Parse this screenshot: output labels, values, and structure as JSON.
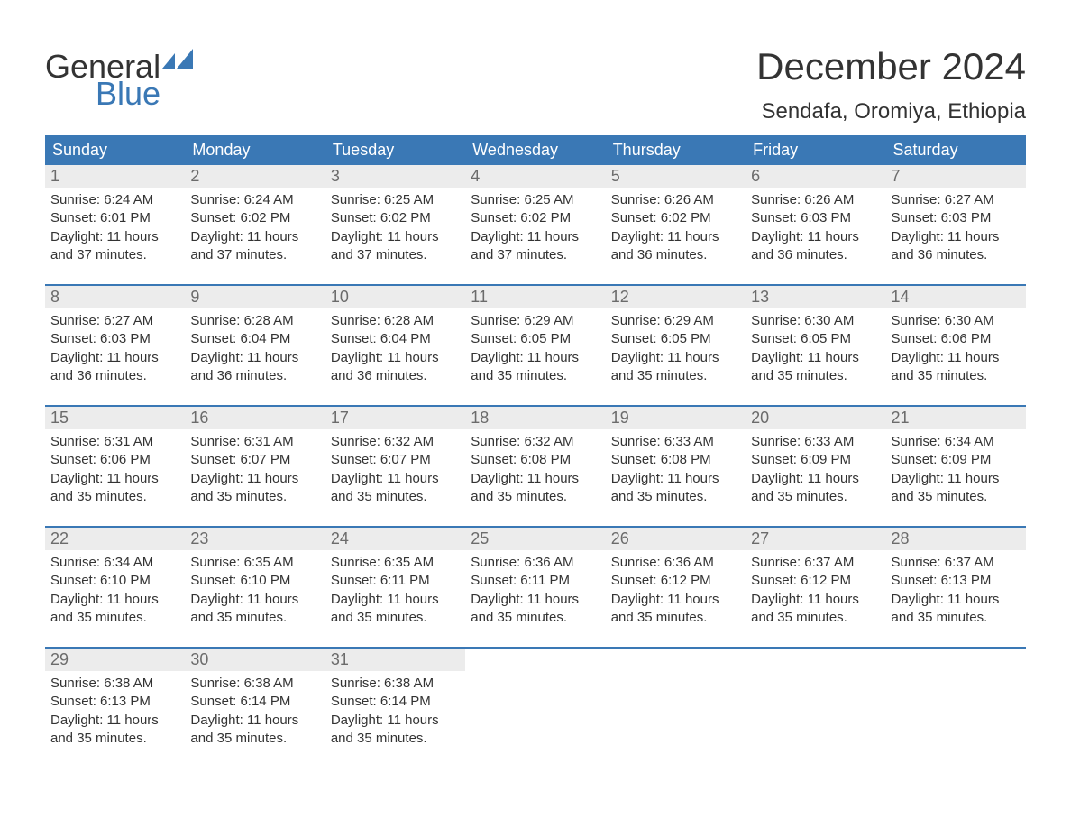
{
  "logo": {
    "word1": "General",
    "word2": "Blue",
    "flag_color": "#3a78b5"
  },
  "title": {
    "month": "December 2024",
    "location": "Sendafa, Oromiya, Ethiopia"
  },
  "colors": {
    "header_bg": "#3a78b5",
    "header_text": "#ffffff",
    "daynum_bg": "#ececec",
    "daynum_text": "#6b6b6b",
    "body_text": "#333333",
    "week_border": "#3a78b5",
    "background": "#ffffff"
  },
  "typography": {
    "month_title_fontsize": 42,
    "location_fontsize": 24,
    "dow_fontsize": 18,
    "daynum_fontsize": 18,
    "body_fontsize": 15
  },
  "labels": {
    "sunrise_prefix": "Sunrise: ",
    "sunset_prefix": "Sunset: ",
    "daylight_prefix": "Daylight: "
  },
  "dow": [
    "Sunday",
    "Monday",
    "Tuesday",
    "Wednesday",
    "Thursday",
    "Friday",
    "Saturday"
  ],
  "weeks": [
    [
      {
        "n": "1",
        "sunrise": "6:24 AM",
        "sunset": "6:01 PM",
        "daylight": "11 hours and 37 minutes."
      },
      {
        "n": "2",
        "sunrise": "6:24 AM",
        "sunset": "6:02 PM",
        "daylight": "11 hours and 37 minutes."
      },
      {
        "n": "3",
        "sunrise": "6:25 AM",
        "sunset": "6:02 PM",
        "daylight": "11 hours and 37 minutes."
      },
      {
        "n": "4",
        "sunrise": "6:25 AM",
        "sunset": "6:02 PM",
        "daylight": "11 hours and 37 minutes."
      },
      {
        "n": "5",
        "sunrise": "6:26 AM",
        "sunset": "6:02 PM",
        "daylight": "11 hours and 36 minutes."
      },
      {
        "n": "6",
        "sunrise": "6:26 AM",
        "sunset": "6:03 PM",
        "daylight": "11 hours and 36 minutes."
      },
      {
        "n": "7",
        "sunrise": "6:27 AM",
        "sunset": "6:03 PM",
        "daylight": "11 hours and 36 minutes."
      }
    ],
    [
      {
        "n": "8",
        "sunrise": "6:27 AM",
        "sunset": "6:03 PM",
        "daylight": "11 hours and 36 minutes."
      },
      {
        "n": "9",
        "sunrise": "6:28 AM",
        "sunset": "6:04 PM",
        "daylight": "11 hours and 36 minutes."
      },
      {
        "n": "10",
        "sunrise": "6:28 AM",
        "sunset": "6:04 PM",
        "daylight": "11 hours and 36 minutes."
      },
      {
        "n": "11",
        "sunrise": "6:29 AM",
        "sunset": "6:05 PM",
        "daylight": "11 hours and 35 minutes."
      },
      {
        "n": "12",
        "sunrise": "6:29 AM",
        "sunset": "6:05 PM",
        "daylight": "11 hours and 35 minutes."
      },
      {
        "n": "13",
        "sunrise": "6:30 AM",
        "sunset": "6:05 PM",
        "daylight": "11 hours and 35 minutes."
      },
      {
        "n": "14",
        "sunrise": "6:30 AM",
        "sunset": "6:06 PM",
        "daylight": "11 hours and 35 minutes."
      }
    ],
    [
      {
        "n": "15",
        "sunrise": "6:31 AM",
        "sunset": "6:06 PM",
        "daylight": "11 hours and 35 minutes."
      },
      {
        "n": "16",
        "sunrise": "6:31 AM",
        "sunset": "6:07 PM",
        "daylight": "11 hours and 35 minutes."
      },
      {
        "n": "17",
        "sunrise": "6:32 AM",
        "sunset": "6:07 PM",
        "daylight": "11 hours and 35 minutes."
      },
      {
        "n": "18",
        "sunrise": "6:32 AM",
        "sunset": "6:08 PM",
        "daylight": "11 hours and 35 minutes."
      },
      {
        "n": "19",
        "sunrise": "6:33 AM",
        "sunset": "6:08 PM",
        "daylight": "11 hours and 35 minutes."
      },
      {
        "n": "20",
        "sunrise": "6:33 AM",
        "sunset": "6:09 PM",
        "daylight": "11 hours and 35 minutes."
      },
      {
        "n": "21",
        "sunrise": "6:34 AM",
        "sunset": "6:09 PM",
        "daylight": "11 hours and 35 minutes."
      }
    ],
    [
      {
        "n": "22",
        "sunrise": "6:34 AM",
        "sunset": "6:10 PM",
        "daylight": "11 hours and 35 minutes."
      },
      {
        "n": "23",
        "sunrise": "6:35 AM",
        "sunset": "6:10 PM",
        "daylight": "11 hours and 35 minutes."
      },
      {
        "n": "24",
        "sunrise": "6:35 AM",
        "sunset": "6:11 PM",
        "daylight": "11 hours and 35 minutes."
      },
      {
        "n": "25",
        "sunrise": "6:36 AM",
        "sunset": "6:11 PM",
        "daylight": "11 hours and 35 minutes."
      },
      {
        "n": "26",
        "sunrise": "6:36 AM",
        "sunset": "6:12 PM",
        "daylight": "11 hours and 35 minutes."
      },
      {
        "n": "27",
        "sunrise": "6:37 AM",
        "sunset": "6:12 PM",
        "daylight": "11 hours and 35 minutes."
      },
      {
        "n": "28",
        "sunrise": "6:37 AM",
        "sunset": "6:13 PM",
        "daylight": "11 hours and 35 minutes."
      }
    ],
    [
      {
        "n": "29",
        "sunrise": "6:38 AM",
        "sunset": "6:13 PM",
        "daylight": "11 hours and 35 minutes."
      },
      {
        "n": "30",
        "sunrise": "6:38 AM",
        "sunset": "6:14 PM",
        "daylight": "11 hours and 35 minutes."
      },
      {
        "n": "31",
        "sunrise": "6:38 AM",
        "sunset": "6:14 PM",
        "daylight": "11 hours and 35 minutes."
      },
      null,
      null,
      null,
      null
    ]
  ]
}
